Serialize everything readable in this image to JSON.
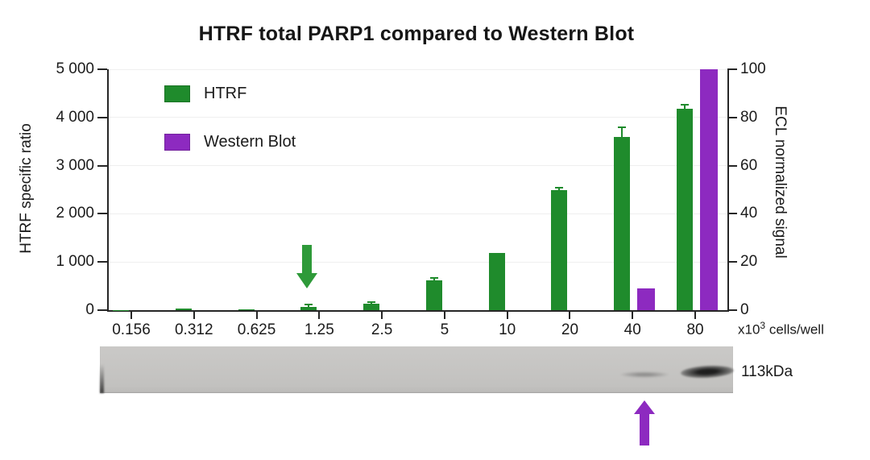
{
  "chart_data": {
    "type": "bar",
    "title": "HTRF total PARP1 compared to Western Blot",
    "categories": [
      "0.156",
      "0.312",
      "0.625",
      "1.25",
      "2.5",
      "5",
      "10",
      "20",
      "40",
      "80"
    ],
    "x_unit": {
      "base": "x10",
      "sup": "3",
      "rest": " cells/well"
    },
    "left_axis": {
      "label": "HTRF specific ratio",
      "min": 0,
      "max": 5000,
      "ticks": [
        {
          "value": 0,
          "label": "0"
        },
        {
          "value": 1000,
          "label": "1 000"
        },
        {
          "value": 2000,
          "label": "2 000"
        },
        {
          "value": 3000,
          "label": "3 000"
        },
        {
          "value": 4000,
          "label": "4 000"
        },
        {
          "value": 5000,
          "label": "5 000"
        }
      ]
    },
    "right_axis": {
      "label": "ECL normalized signal",
      "min": 0,
      "max": 100,
      "ticks": [
        {
          "value": 0,
          "label": "0"
        },
        {
          "value": 20,
          "label": "20"
        },
        {
          "value": 40,
          "label": "40"
        },
        {
          "value": 60,
          "label": "60"
        },
        {
          "value": 80,
          "label": "80"
        },
        {
          "value": 100,
          "label": "100"
        }
      ]
    },
    "gridline_values": [
      1000,
      2000,
      3000,
      4000,
      5000
    ],
    "grid": "horizontal, light gray",
    "legend_position": "upper-left-inside",
    "series": [
      {
        "name": "HTRF",
        "axis": "left",
        "color": "#1f8b2c",
        "values": [
          3,
          30,
          15,
          70,
          140,
          620,
          1190,
          2490,
          3600,
          4180
        ],
        "errors": [
          0,
          0,
          0,
          40,
          20,
          50,
          0,
          60,
          190,
          90
        ]
      },
      {
        "name": "Western Blot",
        "axis": "right",
        "color": "#8d2ac0",
        "values": [
          0,
          0,
          0,
          0,
          0,
          0,
          0,
          0,
          9,
          100
        ],
        "errors": [
          0,
          0,
          0,
          0,
          0,
          0,
          0,
          0,
          0,
          0
        ]
      }
    ],
    "annotations": {
      "green_down_arrow_category": "1.25",
      "purple_up_arrow_category": "40",
      "arrow_green_color": "#2e9a39",
      "arrow_purple_color": "#8d2ac0"
    }
  },
  "western_blot": {
    "label": "113kDa",
    "bands": [
      {
        "category": "40",
        "intensity": "faint"
      },
      {
        "category": "80",
        "intensity": "strong"
      }
    ]
  }
}
